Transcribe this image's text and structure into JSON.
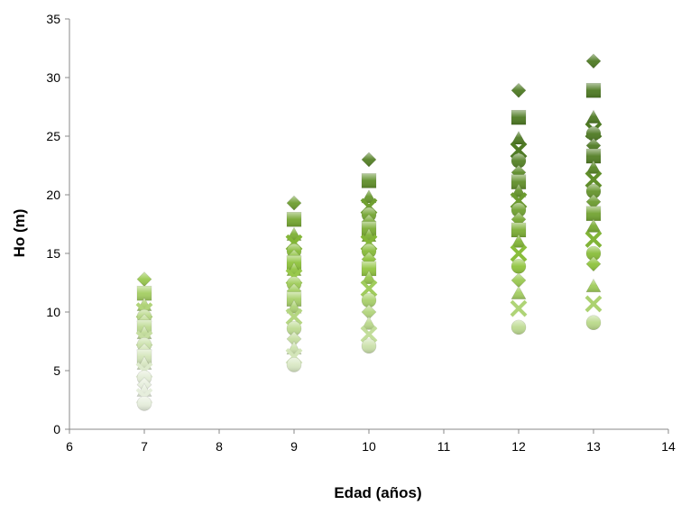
{
  "chart_data": {
    "type": "scatter",
    "title": "",
    "xlabel": "Edad (años)",
    "ylabel": "Ho (m)",
    "xlim": [
      6,
      14
    ],
    "ylim": [
      0,
      35
    ],
    "xticks": [
      6,
      7,
      8,
      9,
      10,
      11,
      12,
      13,
      14
    ],
    "yticks": [
      0,
      5,
      10,
      15,
      20,
      25,
      30,
      35
    ],
    "grid": false,
    "legend": "none",
    "colors": {
      "dark": "#4e7a23",
      "mid": "#8fc43c",
      "light": "#e6eedc",
      "axis": "#888888"
    },
    "series": [
      {
        "marker": "diamond",
        "values": [
          [
            7,
            12.8
          ],
          [
            9,
            19.3
          ],
          [
            10,
            23.0
          ],
          [
            12,
            28.9
          ],
          [
            13,
            31.4
          ]
        ]
      },
      {
        "marker": "square",
        "values": [
          [
            7,
            11.6
          ],
          [
            9,
            17.9
          ],
          [
            10,
            21.2
          ],
          [
            12,
            26.6
          ],
          [
            13,
            28.9
          ]
        ]
      },
      {
        "marker": "triangle",
        "values": [
          [
            7,
            10.6
          ],
          [
            9,
            16.6
          ],
          [
            10,
            19.8
          ],
          [
            12,
            24.8
          ],
          [
            13,
            26.6
          ]
        ]
      },
      {
        "marker": "cross",
        "values": [
          [
            7,
            10.1
          ],
          [
            9,
            15.9
          ],
          [
            10,
            19.0
          ],
          [
            12,
            23.8
          ],
          [
            13,
            25.5
          ]
        ]
      },
      {
        "marker": "circle",
        "values": [
          [
            7,
            9.6
          ],
          [
            9,
            15.2
          ],
          [
            10,
            18.3
          ],
          [
            12,
            22.9
          ],
          [
            13,
            25.2
          ]
        ]
      },
      {
        "marker": "diamond",
        "values": [
          [
            7,
            9.2
          ],
          [
            9,
            14.7
          ],
          [
            10,
            17.7
          ],
          [
            12,
            21.9
          ],
          [
            13,
            24.2
          ]
        ]
      },
      {
        "marker": "square",
        "values": [
          [
            7,
            8.7
          ],
          [
            9,
            14.2
          ],
          [
            10,
            17.1
          ],
          [
            12,
            21.1
          ],
          [
            13,
            23.3
          ]
        ]
      },
      {
        "marker": "triangle",
        "values": [
          [
            7,
            8.2
          ],
          [
            9,
            13.6
          ],
          [
            10,
            16.5
          ],
          [
            12,
            20.3
          ],
          [
            13,
            22.3
          ]
        ]
      },
      {
        "marker": "cross",
        "values": [
          [
            7,
            7.7
          ],
          [
            9,
            13.0
          ],
          [
            10,
            15.9
          ],
          [
            12,
            19.5
          ],
          [
            13,
            21.3
          ]
        ]
      },
      {
        "marker": "circle",
        "values": [
          [
            7,
            7.2
          ],
          [
            9,
            12.4
          ],
          [
            10,
            15.2
          ],
          [
            12,
            18.7
          ],
          [
            13,
            20.3
          ]
        ]
      },
      {
        "marker": "diamond",
        "values": [
          [
            7,
            6.7
          ],
          [
            9,
            11.8
          ],
          [
            10,
            14.5
          ],
          [
            12,
            17.9
          ],
          [
            13,
            19.4
          ]
        ]
      },
      {
        "marker": "square",
        "values": [
          [
            7,
            6.2
          ],
          [
            9,
            11.1
          ],
          [
            10,
            13.7
          ],
          [
            12,
            17.0
          ],
          [
            13,
            18.4
          ]
        ]
      },
      {
        "marker": "triangle",
        "values": [
          [
            7,
            5.6
          ],
          [
            9,
            10.4
          ],
          [
            10,
            12.9
          ],
          [
            12,
            16.0
          ],
          [
            13,
            17.3
          ]
        ]
      },
      {
        "marker": "cross",
        "values": [
          [
            7,
            5.0
          ],
          [
            9,
            9.6
          ],
          [
            10,
            12.0
          ],
          [
            12,
            15.0
          ],
          [
            13,
            16.2
          ]
        ]
      },
      {
        "marker": "circle",
        "values": [
          [
            7,
            4.4
          ],
          [
            9,
            8.6
          ],
          [
            10,
            11.0
          ],
          [
            12,
            13.9
          ],
          [
            13,
            15.0
          ]
        ]
      },
      {
        "marker": "diamond",
        "values": [
          [
            7,
            3.8
          ],
          [
            9,
            7.7
          ],
          [
            10,
            10.0
          ],
          [
            12,
            12.7
          ],
          [
            13,
            14.1
          ]
        ]
      },
      {
        "marker": "triangle",
        "values": [
          [
            7,
            3.3
          ],
          [
            9,
            6.9
          ],
          [
            10,
            9.0
          ],
          [
            12,
            11.6
          ],
          [
            13,
            12.2
          ]
        ]
      },
      {
        "marker": "cross",
        "values": [
          [
            7,
            2.8
          ],
          [
            9,
            6.2
          ],
          [
            10,
            8.1
          ],
          [
            12,
            10.3
          ],
          [
            13,
            10.7
          ]
        ]
      },
      {
        "marker": "circle",
        "values": [
          [
            7,
            2.2
          ],
          [
            9,
            5.5
          ],
          [
            10,
            7.1
          ],
          [
            12,
            8.7
          ],
          [
            13,
            9.1
          ]
        ]
      }
    ]
  }
}
